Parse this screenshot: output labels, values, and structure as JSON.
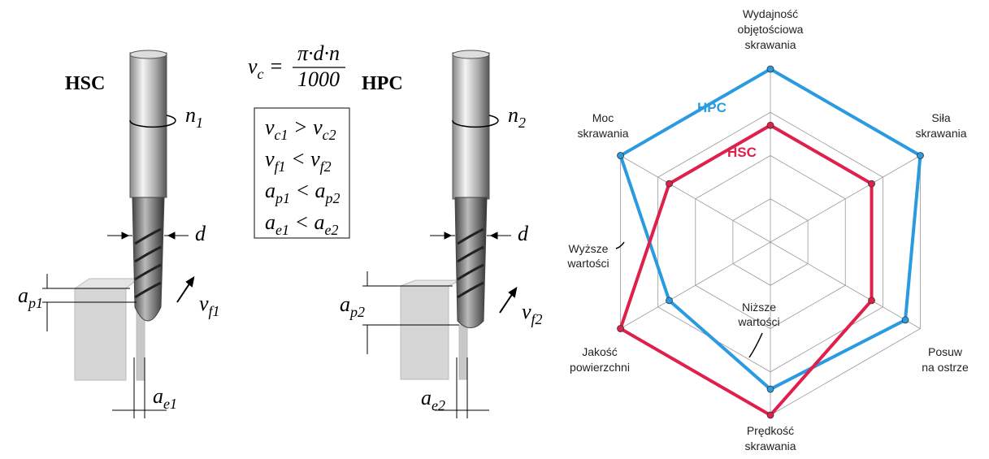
{
  "illustration": {
    "hsc": {
      "title": "HSC",
      "rotation": [
        {
          "text": "n"
        },
        {
          "sub": "1"
        }
      ],
      "diameter": "d",
      "depth": [
        {
          "text": "a"
        },
        {
          "sub": "p1"
        }
      ],
      "feed": [
        {
          "text": "v"
        },
        {
          "sub": "f1"
        }
      ],
      "width": [
        {
          "text": "a"
        },
        {
          "sub": "e1"
        }
      ]
    },
    "hpc": {
      "title": "HPC",
      "rotation": [
        {
          "text": "n"
        },
        {
          "sub": "2"
        }
      ],
      "diameter": "d",
      "depth": [
        {
          "text": "a"
        },
        {
          "sub": "p2"
        }
      ],
      "feed": [
        {
          "text": "v"
        },
        {
          "sub": "f2"
        }
      ],
      "width": [
        {
          "text": "a"
        },
        {
          "sub": "e2"
        }
      ]
    },
    "formula": {
      "lhs": [
        {
          "text": "v"
        },
        {
          "sub": "c"
        },
        {
          "text": " ="
        }
      ],
      "numerator": "π·d·n",
      "denominator": "1000"
    },
    "relations": [
      [
        {
          "text": "v"
        },
        {
          "sub": "c1"
        },
        {
          "text": " > v"
        },
        {
          "sub": "c2"
        }
      ],
      [
        {
          "text": "v"
        },
        {
          "sub": "f1"
        },
        {
          "text": " < v"
        },
        {
          "sub": "f2"
        }
      ],
      [
        {
          "text": "a"
        },
        {
          "sub": "p1"
        },
        {
          "text": " < a"
        },
        {
          "sub": "p2"
        }
      ],
      [
        {
          "text": "a"
        },
        {
          "sub": "e1"
        },
        {
          "text": " < a"
        },
        {
          "sub": "e2"
        }
      ]
    ]
  },
  "chart_data": {
    "type": "radar",
    "categories": [
      [
        "Wydajność",
        "objętościowa",
        "skrawania"
      ],
      [
        "Siła",
        "skrawania"
      ],
      [
        "Posuw",
        "na ostrze"
      ],
      [
        "Prędkość",
        "skrawania"
      ],
      [
        "Jakość",
        "powierzchni"
      ],
      [
        "Moc",
        "skrawania"
      ]
    ],
    "rlim": [
      0,
      4
    ],
    "grid_levels": 4,
    "series": [
      {
        "name": "HPC",
        "color": "#2a9be0",
        "values": [
          4,
          4,
          3.6,
          3.4,
          2.7,
          4
        ]
      },
      {
        "name": "HSC",
        "color": "#e0204a",
        "values": [
          2.7,
          2.7,
          2.7,
          4,
          4,
          2.7
        ]
      }
    ],
    "annotations": [
      [
        "Wyższe",
        "wartości"
      ],
      [
        "Niższe",
        "wartości"
      ]
    ]
  }
}
